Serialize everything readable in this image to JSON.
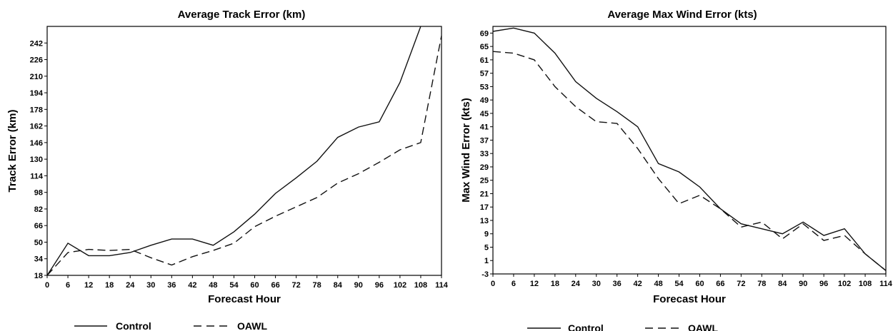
{
  "chart_data": [
    {
      "type": "line",
      "title": "Average Track Error (km)",
      "xlabel": "Forecast Hour",
      "ylabel": "Track Error (km)",
      "xlim": [
        0,
        114
      ],
      "ylim": [
        18,
        258
      ],
      "x_ticks": [
        0,
        6,
        12,
        18,
        24,
        30,
        36,
        42,
        48,
        54,
        60,
        66,
        72,
        78,
        84,
        90,
        96,
        102,
        108,
        114
      ],
      "y_ticks": [
        18,
        34,
        50,
        66,
        82,
        98,
        114,
        130,
        146,
        162,
        178,
        194,
        210,
        226,
        242
      ],
      "x": [
        0,
        6,
        12,
        18,
        24,
        30,
        36,
        42,
        48,
        54,
        60,
        66,
        72,
        78,
        84,
        90,
        96,
        102,
        108,
        114
      ],
      "series": [
        {
          "name": "Control",
          "style": "solid",
          "values": [
            18,
            49,
            37,
            37,
            40,
            47,
            53,
            53,
            47,
            60,
            77,
            97,
            112,
            128,
            151,
            161,
            166,
            204,
            258,
            null
          ]
        },
        {
          "name": "OAWL",
          "style": "dashed",
          "values": [
            18,
            40,
            43,
            42,
            43,
            35,
            28,
            36,
            42,
            49,
            65,
            75,
            84,
            93,
            107,
            116,
            127,
            139,
            146,
            249
          ]
        }
      ],
      "grid": false,
      "legend_position": "bottom-left"
    },
    {
      "type": "line",
      "title": "Average Max Wind Error (kts)",
      "xlabel": "Forecast Hour",
      "ylabel": "Max Wind Error (kts)",
      "xlim": [
        0,
        114
      ],
      "ylim": [
        -3,
        71
      ],
      "x_ticks": [
        0,
        6,
        12,
        18,
        24,
        30,
        36,
        42,
        48,
        54,
        60,
        66,
        72,
        78,
        84,
        90,
        96,
        102,
        108,
        114
      ],
      "y_ticks": [
        -3,
        1,
        5,
        9,
        13,
        17,
        21,
        25,
        29,
        33,
        37,
        41,
        45,
        49,
        53,
        57,
        61,
        65,
        69
      ],
      "x": [
        0,
        6,
        12,
        18,
        24,
        30,
        36,
        42,
        48,
        54,
        60,
        66,
        72,
        78,
        84,
        90,
        96,
        102,
        108,
        114
      ],
      "series": [
        {
          "name": "Control",
          "style": "solid",
          "values": [
            69.5,
            70.5,
            69,
            63,
            54.5,
            49.5,
            45.5,
            41,
            30,
            27.5,
            23,
            16.5,
            12,
            10.5,
            9,
            12.5,
            8.5,
            10.5,
            3,
            -2
          ]
        },
        {
          "name": "OAWL",
          "style": "dashed",
          "values": [
            63.5,
            63,
            61,
            53,
            47,
            42.5,
            42,
            34.5,
            25.5,
            18,
            20.5,
            16.5,
            11,
            12.5,
            7.5,
            12,
            7,
            8.5,
            3,
            -2
          ]
        }
      ],
      "grid": false,
      "legend_position": "bottom-left"
    }
  ]
}
